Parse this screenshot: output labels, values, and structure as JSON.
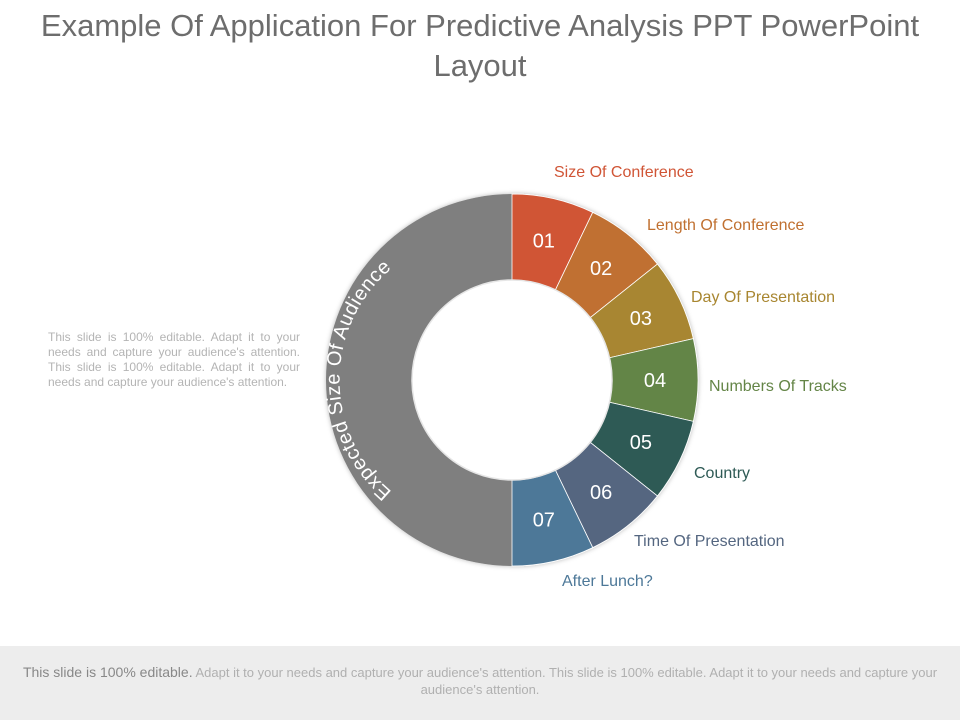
{
  "title": "Example Of Application For Predictive Analysis PPT PowerPoint Layout",
  "side_text": "This slide is 100% editable. Adapt it to your needs and capture your audience's attention. This slide is 100% editable. Adapt it to your needs and capture your audience's attention.",
  "diagram": {
    "arc_label": "Expected Size Of Audience",
    "arc_color": "#7f7f7f",
    "segments": [
      {
        "number": "01",
        "label": "Size Of Conference",
        "color": "#d05536"
      },
      {
        "number": "02",
        "label": "Length Of Conference",
        "color": "#c07030"
      },
      {
        "number": "03",
        "label": "Day Of Presentation",
        "color": "#a88630"
      },
      {
        "number": "04",
        "label": "Numbers Of Tracks",
        "color": "#648547"
      },
      {
        "number": "05",
        "label": "Country",
        "color": "#2e5a55"
      },
      {
        "number": "06",
        "label": "Time Of Presentation",
        "color": "#546680"
      },
      {
        "number": "07",
        "label": "After Lunch?",
        "color": "#4d7898"
      }
    ]
  },
  "footer": {
    "lead": "This slide is 100% editable.",
    "text": " Adapt it to your needs and capture your audience's attention. This slide is 100% editable. Adapt it to your needs and capture your audience's attention."
  }
}
